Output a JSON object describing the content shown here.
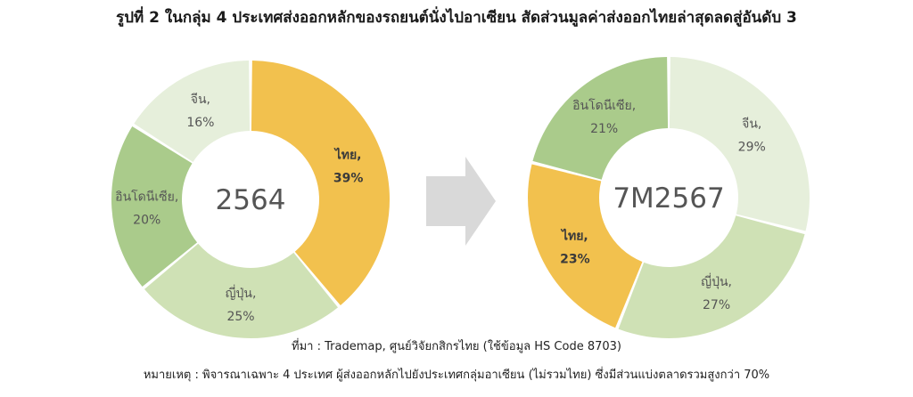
{
  "title": "รูปที่ 2 ในกลุ่ม 4 ประเทศส่งออกหลักของรถยนต์นั่งไปอาเซียน สัดส่วนมูลค่าส่งออกไทยล่าสุดลดสู่อันดับ 3",
  "source": "ที่มา : Trademap, ศูนย์วิจัยกสิกรไทย (ใช้ข้อมูล HS Code 8703)",
  "note": "หมายเหตุ : พิจารณาเฉพาะ 4 ประเทศ ผู้ส่งออกหลักไปยังประเทศกลุ่มอาเซียน (ไม่รวมไทย) ซึ่งมีส่วนแบ่งตลาดรวมสูงกว่า 70%",
  "arrow_icon": "right-arrow-icon",
  "colors": {
    "thailand": "#F2C14E",
    "china": "#E6EFDB",
    "japan": "#CFE1B5",
    "indonesia": "#AACB8B",
    "center_text": "#555555",
    "arrow": "#D9D9D9"
  },
  "chart_data": [
    {
      "type": "pie",
      "center_label": "2564",
      "slices": [
        {
          "id": "thailand",
          "name": "ไทย,",
          "value": 39,
          "label": "39%",
          "bold": true
        },
        {
          "id": "japan",
          "name": "ญี่ปุ่น,",
          "value": 25,
          "label": "25%"
        },
        {
          "id": "indonesia",
          "name": "อินโดนีเซีย,",
          "value": 20,
          "label": "20%"
        },
        {
          "id": "china",
          "name": "จีน,",
          "value": 16,
          "label": "16%"
        }
      ]
    },
    {
      "type": "pie",
      "center_label": "7M2567",
      "slices": [
        {
          "id": "china",
          "name": "จีน,",
          "value": 29,
          "label": "29%"
        },
        {
          "id": "japan",
          "name": "ญี่ปุ่น,",
          "value": 27,
          "label": "27%"
        },
        {
          "id": "thailand",
          "name": "ไทย,",
          "value": 23,
          "label": "23%",
          "bold": true
        },
        {
          "id": "indonesia",
          "name": "อินโดนีเซีย,",
          "value": 21,
          "label": "21%"
        }
      ]
    }
  ]
}
